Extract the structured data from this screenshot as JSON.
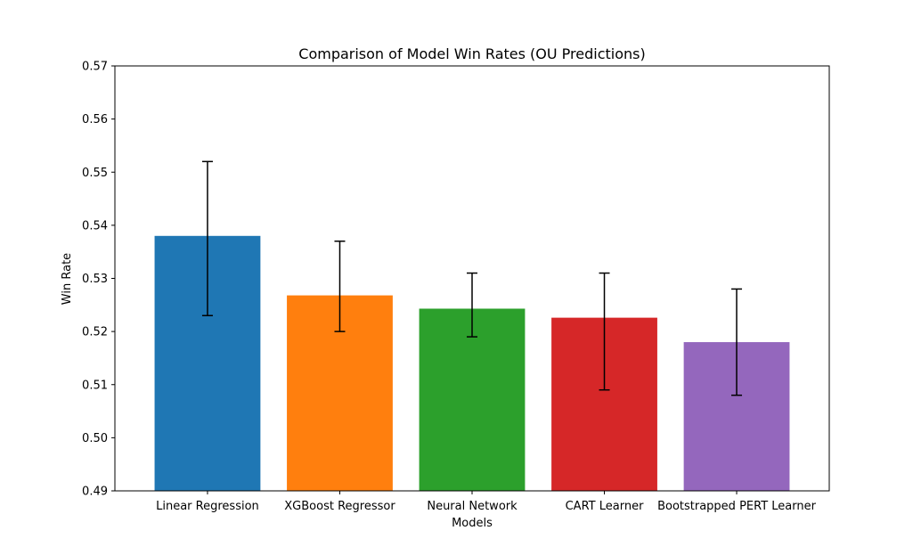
{
  "chart_data": {
    "type": "bar",
    "title": "Comparison of Model Win Rates (OU Predictions)",
    "xlabel": "Models",
    "ylabel": "Win Rate",
    "categories": [
      "Linear Regression",
      "XGBoost Regressor",
      "Neural Network",
      "CART Learner",
      "Bootstrapped PERT Learner"
    ],
    "values": [
      0.538,
      0.5268,
      0.5243,
      0.5226,
      0.518
    ],
    "error_bars": [
      {
        "low": 0.523,
        "high": 0.552
      },
      {
        "low": 0.52,
        "high": 0.537
      },
      {
        "low": 0.519,
        "high": 0.531
      },
      {
        "low": 0.509,
        "high": 0.531
      },
      {
        "low": 0.508,
        "high": 0.528
      }
    ],
    "colors": [
      "#1f77b4",
      "#ff7f0e",
      "#2ca02c",
      "#d62728",
      "#9467bd"
    ],
    "ylim": [
      0.49,
      0.57
    ],
    "yticks": [
      "0.49",
      "0.50",
      "0.51",
      "0.52",
      "0.53",
      "0.54",
      "0.55",
      "0.56",
      "0.57"
    ],
    "grid": false,
    "legend": "none"
  }
}
